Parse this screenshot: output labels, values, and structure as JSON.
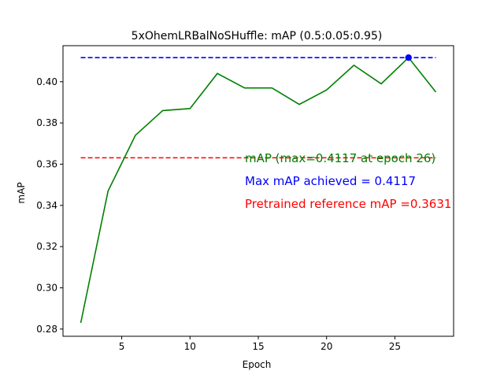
{
  "chart_data": {
    "type": "line",
    "title": "5xOhemLRBalNoSHuffle:  mAP (0.5:0.05:0.95)",
    "xlabel": "Epoch",
    "ylabel": "mAP",
    "xlim": [
      0.7,
      29.3
    ],
    "ylim": [
      0.2765,
      0.4175
    ],
    "xticks": [
      5,
      10,
      15,
      20,
      25
    ],
    "yticks": [
      0.28,
      0.3,
      0.32,
      0.34,
      0.36,
      0.38,
      0.4
    ],
    "ytick_labels": [
      "0.28",
      "0.30",
      "0.32",
      "0.34",
      "0.36",
      "0.38",
      "0.40"
    ],
    "grid": false,
    "series": [
      {
        "name": "mAP (max=0.4117 at epoch 26)",
        "color": "#008000",
        "style": "solid",
        "x": [
          2,
          4,
          6,
          8,
          10,
          12,
          14,
          16,
          18,
          20,
          22,
          24,
          26,
          28
        ],
        "y": [
          0.283,
          0.347,
          0.374,
          0.386,
          0.387,
          0.404,
          0.397,
          0.397,
          0.389,
          0.396,
          0.408,
          0.399,
          0.4117,
          0.395
        ]
      }
    ],
    "reference_lines": [
      {
        "label": "Max mAP achieved = 0.4117",
        "value": 0.4117,
        "x": [
          2,
          28
        ],
        "color": "#0000ff",
        "style": "dashed"
      },
      {
        "label": "Pretrained reference mAP =0.3631",
        "value": 0.3631,
        "x": [
          2,
          28
        ],
        "color": "#ff0000",
        "style": "dashed"
      }
    ],
    "max_point": {
      "x": 26,
      "y": 0.4117,
      "color": "#0000ff"
    },
    "annotations": [
      {
        "text": "mAP (max=0.4117 at epoch 26)",
        "color": "#008000"
      },
      {
        "text": "Max mAP achieved = 0.4117",
        "color": "#0000ff"
      },
      {
        "text": "Pretrained reference mAP =0.3631",
        "color": "#ff0000"
      }
    ]
  }
}
